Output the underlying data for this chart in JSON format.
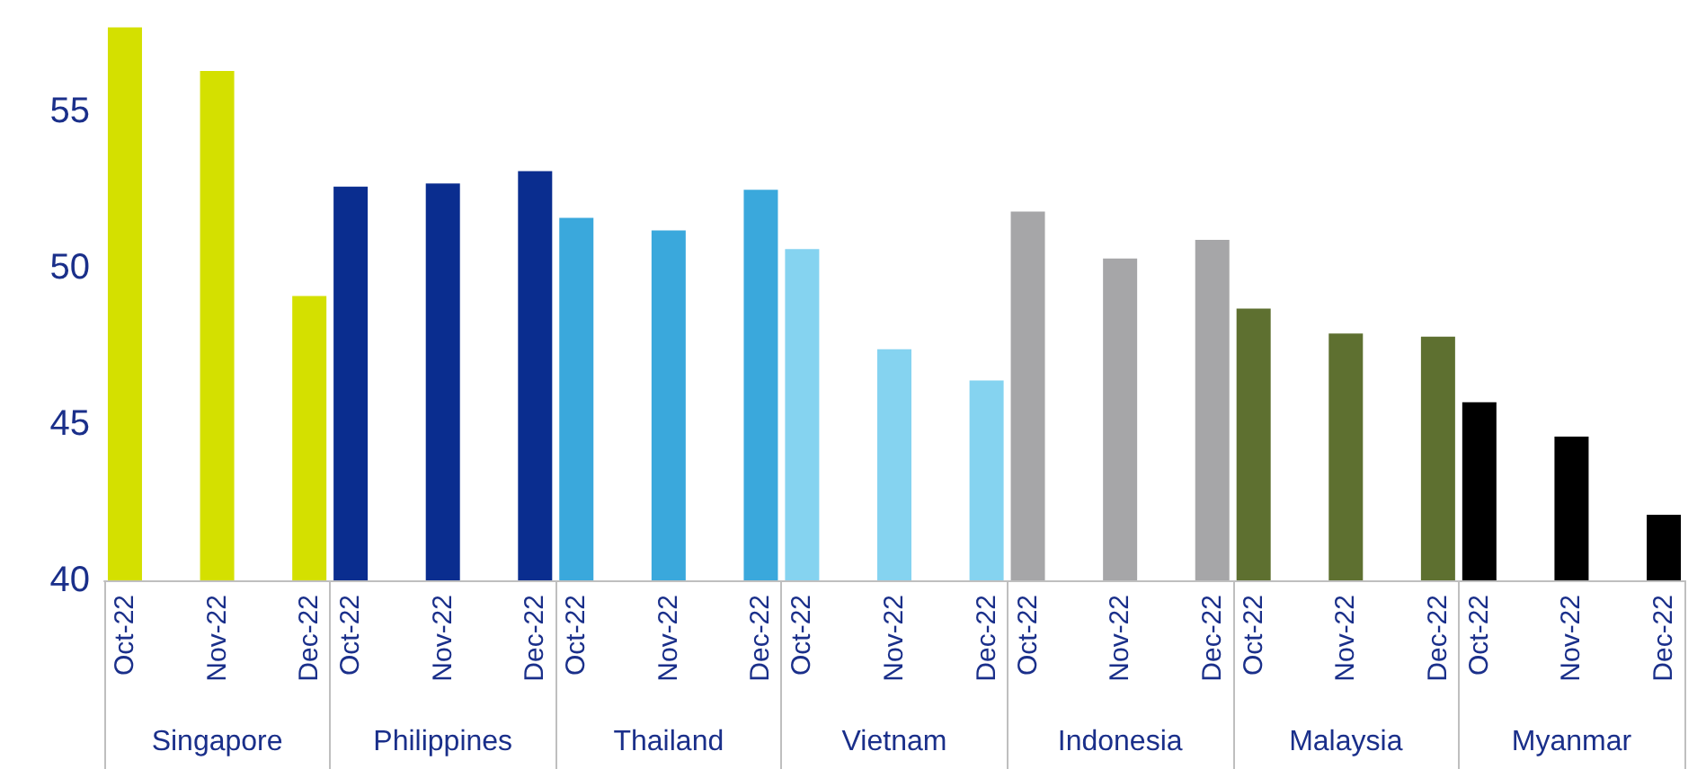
{
  "chart_data": {
    "type": "bar",
    "categories": [
      "Singapore",
      "Philippines",
      "Thailand",
      "Vietnam",
      "Indonesia",
      "Malaysia",
      "Myanmar"
    ],
    "series": [
      {
        "name": "Oct-22",
        "colors": [
          "#d4e000",
          "#0a2d8f",
          "#3aa8dc",
          "#85d3f0",
          "#a6a6a8",
          "#5e7030",
          "#000000"
        ],
        "values": [
          57.7,
          52.6,
          51.6,
          50.6,
          51.8,
          48.7,
          45.7
        ]
      },
      {
        "name": "Nov-22",
        "colors": [
          "#d4e000",
          "#0a2d8f",
          "#3aa8dc",
          "#85d3f0",
          "#a6a6a8",
          "#5e7030",
          "#000000"
        ],
        "values": [
          56.3,
          52.7,
          51.2,
          47.4,
          50.3,
          47.9,
          44.6
        ]
      },
      {
        "name": "Dec-22",
        "colors": [
          "#d4e000",
          "#0a2d8f",
          "#3aa8dc",
          "#85d3f0",
          "#a6a6a8",
          "#5e7030",
          "#000000"
        ],
        "values": [
          49.1,
          53.1,
          52.5,
          46.4,
          50.9,
          47.8,
          42.1
        ]
      }
    ],
    "ylim": [
      40,
      58
    ],
    "yticks": [
      40,
      45,
      50,
      55
    ]
  }
}
